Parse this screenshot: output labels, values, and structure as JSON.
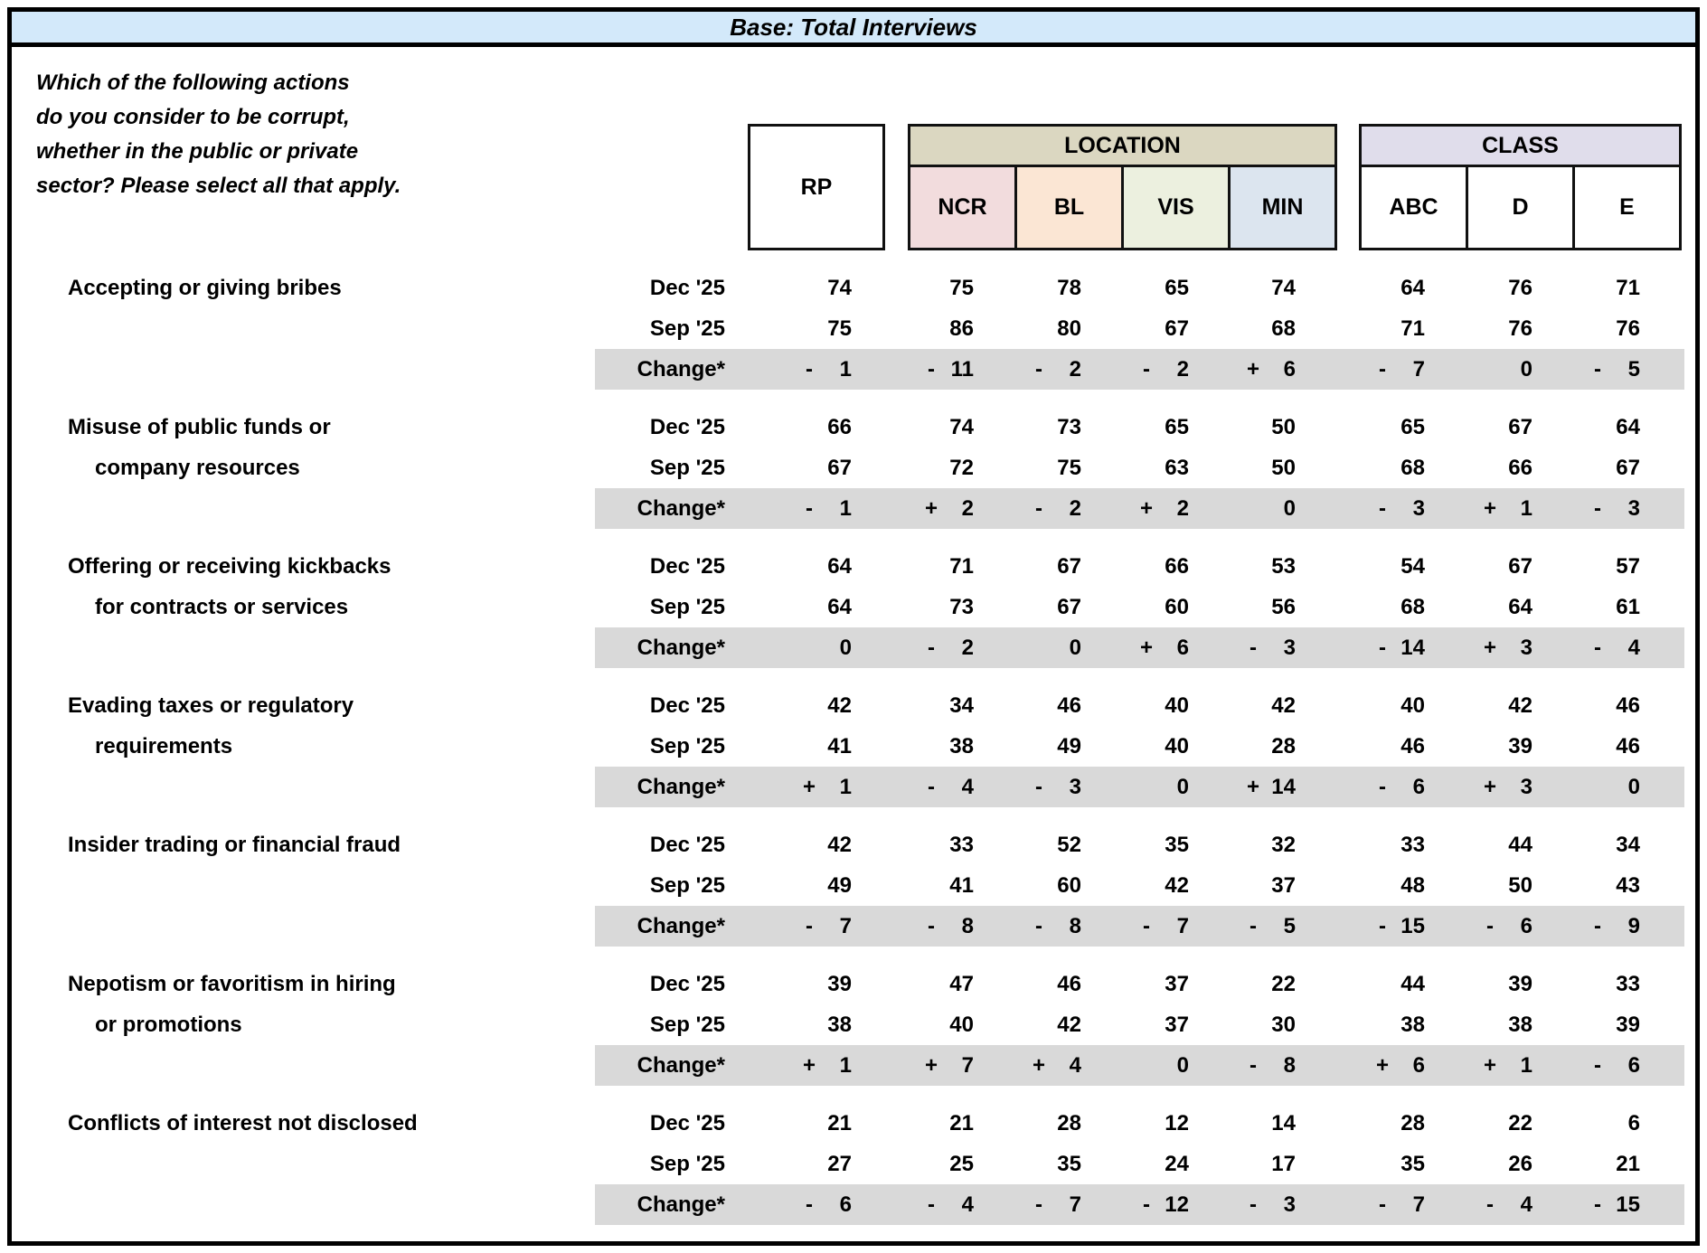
{
  "banner": {
    "title": "Base: Total Interviews"
  },
  "question_lines": [
    "Which of the following actions",
    "do you consider to be corrupt,",
    "whether in the public or private",
    "sector? Please select all that apply."
  ],
  "header": {
    "rp": "RP",
    "location_label": "LOCATION",
    "location_cols": [
      "NCR",
      "BL",
      "VIS",
      "MIN"
    ],
    "class_label": "CLASS",
    "class_cols": [
      "ABC",
      "D",
      "E"
    ]
  },
  "period_labels": {
    "current": "Dec '25",
    "previous": "Sep '25",
    "change": "Change*"
  },
  "colors": {
    "banner_bg": "#d3e9fa",
    "location_header_bg": "#dbd7c1",
    "ncr_bg": "#f2dcdd",
    "bl_bg": "#fbe6d4",
    "vis_bg": "#ecf0df",
    "min_bg": "#dce5ef",
    "class_header_bg": "#e0ddeb",
    "change_band_bg": "#d9d9d9"
  },
  "items": [
    {
      "label_lines": [
        "Accepting or giving bribes"
      ],
      "dec": [
        74,
        75,
        78,
        65,
        74,
        64,
        76,
        71
      ],
      "sep": [
        75,
        86,
        80,
        67,
        68,
        71,
        76,
        76
      ],
      "change": [
        "-1",
        "-11",
        "-2",
        "-2",
        "+6",
        "-7",
        "0",
        "-5"
      ]
    },
    {
      "label_lines": [
        "Misuse of public funds or",
        "company resources"
      ],
      "dec": [
        66,
        74,
        73,
        65,
        50,
        65,
        67,
        64
      ],
      "sep": [
        67,
        72,
        75,
        63,
        50,
        68,
        66,
        67
      ],
      "change": [
        "-1",
        "+2",
        "-2",
        "+2",
        "0",
        "-3",
        "+1",
        "-3"
      ]
    },
    {
      "label_lines": [
        "Offering or receiving kickbacks",
        "for contracts or services"
      ],
      "dec": [
        64,
        71,
        67,
        66,
        53,
        54,
        67,
        57
      ],
      "sep": [
        64,
        73,
        67,
        60,
        56,
        68,
        64,
        61
      ],
      "change": [
        "0",
        "-2",
        "0",
        "+6",
        "-3",
        "-14",
        "+3",
        "-4"
      ]
    },
    {
      "label_lines": [
        "Evading taxes or regulatory",
        "requirements"
      ],
      "dec": [
        42,
        34,
        46,
        40,
        42,
        40,
        42,
        46
      ],
      "sep": [
        41,
        38,
        49,
        40,
        28,
        46,
        39,
        46
      ],
      "change": [
        "+1",
        "-4",
        "-3",
        "0",
        "+14",
        "-6",
        "+3",
        "0"
      ]
    },
    {
      "label_lines": [
        "Insider trading or financial fraud"
      ],
      "dec": [
        42,
        33,
        52,
        35,
        32,
        33,
        44,
        34
      ],
      "sep": [
        49,
        41,
        60,
        42,
        37,
        48,
        50,
        43
      ],
      "change": [
        "-7",
        "-8",
        "-8",
        "-7",
        "-5",
        "-15",
        "-6",
        "-9"
      ]
    },
    {
      "label_lines": [
        "Nepotism or favoritism in hiring",
        "or promotions"
      ],
      "dec": [
        39,
        47,
        46,
        37,
        22,
        44,
        39,
        33
      ],
      "sep": [
        38,
        40,
        42,
        37,
        30,
        38,
        38,
        39
      ],
      "change": [
        "+1",
        "+7",
        "+4",
        "0",
        "-8",
        "+6",
        "+1",
        "-6"
      ]
    },
    {
      "label_lines": [
        "Conflicts of interest not disclosed"
      ],
      "dec": [
        21,
        21,
        28,
        12,
        14,
        28,
        22,
        6
      ],
      "sep": [
        27,
        25,
        35,
        24,
        17,
        35,
        26,
        21
      ],
      "change": [
        "-6",
        "-4",
        "-7",
        "-12",
        "-3",
        "-7",
        "-4",
        "-15"
      ]
    }
  ]
}
